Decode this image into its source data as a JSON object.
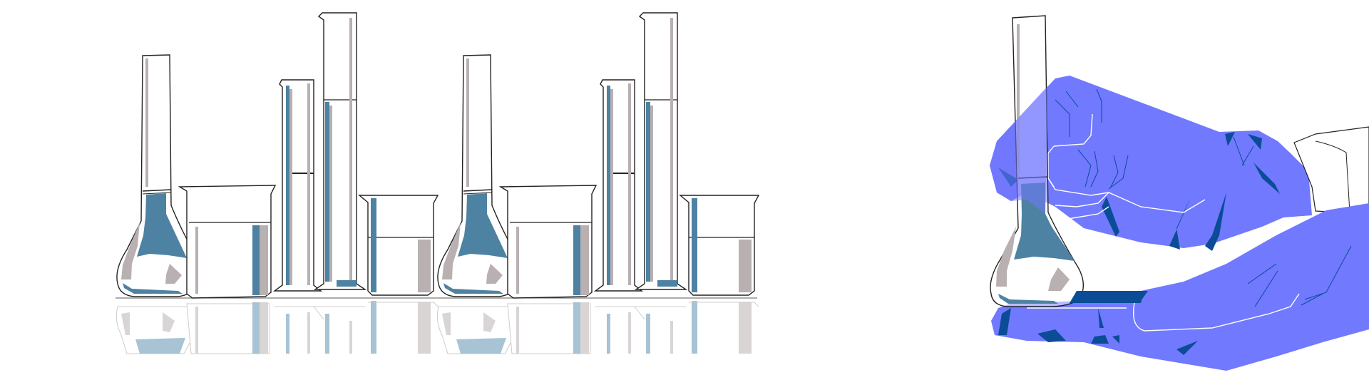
{
  "scene": {
    "description_icons": [
      "volumetric-flask-icon",
      "beaker-icon",
      "graduated-cylinder-icon",
      "gloved-hand-icon"
    ],
    "colors": {
      "liquid_blue": "#4E82A3",
      "liquid_grey": "#B8B0B1",
      "glove_blue": "#7179FE",
      "glove_dark": "#0B4C96",
      "outline": "#222222",
      "reflection_blue": "#A7C3D4",
      "reflection_grey": "#D9D5D5",
      "background": "#FFFFFF"
    },
    "glassware_groups": 2
  }
}
